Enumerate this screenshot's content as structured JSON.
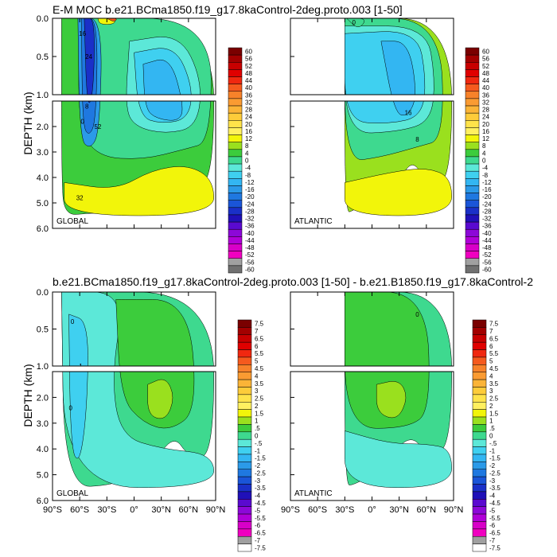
{
  "figure": {
    "top_title": "E-M MOC  b.e21.BCma1850.f19_g17.8kaControl-2deg.proto.003 [1-50]",
    "bottom_title": "b.e21.BCma1850.f19_g17.8kaControl-2deg.proto.003 [1-50] - b.e21.B1850.f19_g17.8kaControl-2",
    "ylabel": "DEPTH (km)"
  },
  "chart_data": [
    {
      "type": "heatmap",
      "title": "E-M MOC  b.e21.BCma1850.f19_g17.8kaControl-2deg.proto.003 [1-50]",
      "ylabel": "DEPTH (km)",
      "panels": [
        {
          "label": "GLOBAL",
          "xlim": [
            -90,
            90
          ],
          "ylim": [
            6.0,
            0.0
          ],
          "yticks": [
            "0.0",
            "0.5",
            "1.0",
            "2.0",
            "3.0",
            "4.0",
            "5.0",
            "6.0"
          ],
          "contour_labels": [
            "16",
            "24",
            "8",
            "0",
            "52",
            "32"
          ]
        },
        {
          "label": "ATLANTIC",
          "xlim": [
            -90,
            90
          ],
          "ylim": [
            6.0,
            0.0
          ],
          "contour_labels": [
            "16",
            "8",
            "0"
          ]
        }
      ],
      "colorbar": [
        "60",
        "56",
        "52",
        "48",
        "44",
        "40",
        "36",
        "32",
        "28",
        "24",
        "20",
        "16",
        "12",
        "8",
        "4",
        "0",
        "-4",
        "-8",
        "-12",
        "-16",
        "-20",
        "-24",
        "-28",
        "-32",
        "-36",
        "-40",
        "-44",
        "-48",
        "-52",
        "-56",
        "-60"
      ],
      "colorbar_colors": [
        "#7a0000",
        "#a30000",
        "#c80000",
        "#e00000",
        "#f02810",
        "#f55a1e",
        "#f7822a",
        "#fa9b32",
        "#fbb437",
        "#fdcc3a",
        "#ffe34a",
        "#fff060",
        "#f2f50a",
        "#9ae01e",
        "#3ccc3c",
        "#3ed98f",
        "#5ce8d8",
        "#3fd0f0",
        "#33b6f2",
        "#2b9ae8",
        "#1f78e0",
        "#1a55d8",
        "#1a30c8",
        "#2010b8",
        "#5a0ad0",
        "#8c08d8",
        "#b000d8",
        "#d800c8",
        "#f000c0",
        "#a0a0a0",
        "#707070"
      ]
    },
    {
      "type": "heatmap",
      "title": "b.e21.BCma1850.f19_g17.8kaControl-2deg.proto.003 [1-50] - b.e21.B1850.f19_g17.8kaControl-2",
      "ylabel": "DEPTH (km)",
      "panels": [
        {
          "label": "GLOBAL",
          "xlim": [
            -90,
            90
          ],
          "ylim": [
            6.0,
            0.0
          ],
          "yticks": [
            "0.0",
            "0.5",
            "1.0",
            "2.0",
            "3.0",
            "4.0",
            "5.0",
            "6.0"
          ],
          "xticks": [
            "90°S",
            "60°S",
            "30°S",
            "0°",
            "30°N",
            "60°N",
            "90°N"
          ],
          "contour_labels": [
            "0",
            "-1",
            "0"
          ]
        },
        {
          "label": "ATLANTIC",
          "xlim": [
            -90,
            90
          ],
          "ylim": [
            6.0,
            0.0
          ],
          "xticks": [
            "90°S",
            "60°S",
            "30°S",
            "0°",
            "30°N",
            "60°N",
            "90°N"
          ],
          "contour_labels": [
            "0"
          ]
        }
      ],
      "colorbar": [
        "7.5",
        "7",
        "6.5",
        "6",
        "5.5",
        "5",
        "4.5",
        "4",
        "3.5",
        "3",
        "2.5",
        "2",
        "1.5",
        "1",
        ".5",
        "0",
        "-.5",
        "-1",
        "-1.5",
        "-2",
        "-2.5",
        "-3",
        "-3.5",
        "-4",
        "-4.5",
        "-5",
        "-5.5",
        "-6",
        "-6.5",
        "-7",
        "-7.5"
      ],
      "colorbar_colors": [
        "#7a0000",
        "#a30000",
        "#c80000",
        "#e00000",
        "#f02810",
        "#f55a1e",
        "#f7822a",
        "#fa9b32",
        "#fbb437",
        "#fdcc3a",
        "#ffe34a",
        "#fff060",
        "#f2f50a",
        "#9ae01e",
        "#3ccc3c",
        "#3ed98f",
        "#5ce8d8",
        "#3fd0f0",
        "#33b6f2",
        "#2b9ae8",
        "#1f78e0",
        "#1a55d8",
        "#1a30c8",
        "#2010b8",
        "#5a0ad0",
        "#8c08d8",
        "#b000d8",
        "#d800c8",
        "#f000c0",
        "#a0a0a0",
        "#ffffff"
      ]
    }
  ]
}
